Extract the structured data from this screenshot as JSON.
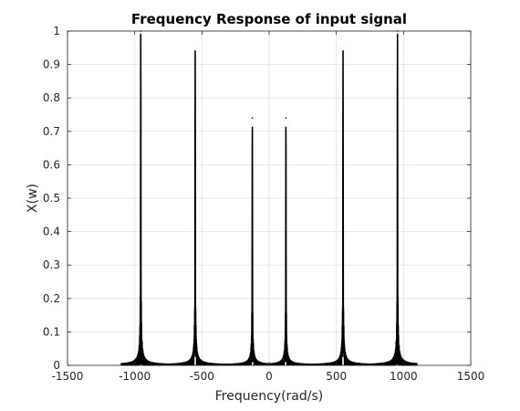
{
  "chart_data": {
    "type": "line",
    "title": "Frequency Response of input signal",
    "xlabel": "Frequency(rad/s)",
    "ylabel": "X(w)",
    "xlim": [
      -1500,
      1500
    ],
    "ylim": [
      0,
      1
    ],
    "xticks": [
      -1500,
      -1000,
      -500,
      0,
      500,
      1000,
      1500
    ],
    "yticks": [
      0,
      0.1,
      0.2,
      0.3,
      0.4,
      0.5,
      0.6,
      0.7,
      0.8,
      0.9,
      1
    ],
    "grid": true,
    "x_range": [
      -1100,
      1100
    ],
    "peaks": [
      {
        "x": -955,
        "y": 1.0
      },
      {
        "x": -550,
        "y": 0.94
      },
      {
        "x": -125,
        "y": 0.74
      },
      {
        "x": 125,
        "y": 0.74
      },
      {
        "x": 550,
        "y": 0.94
      },
      {
        "x": 955,
        "y": 1.0
      }
    ],
    "series_color": "#000000"
  }
}
